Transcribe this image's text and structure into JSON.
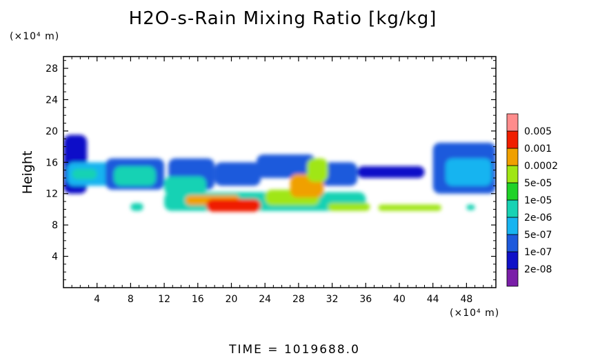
{
  "chart_data": {
    "type": "heatmap",
    "title": "H2O-s-Rain Mixing Ratio [kg/kg]",
    "ylabel": "Height",
    "x_unit": "(×10⁴ m)",
    "y_unit": "(×10⁴ m)",
    "xlim": [
      0,
      51.5
    ],
    "ylim": [
      0,
      29.5
    ],
    "x_ticks": [
      4,
      8,
      12,
      16,
      20,
      24,
      28,
      32,
      36,
      40,
      44,
      48
    ],
    "y_ticks": [
      4,
      8,
      12,
      16,
      20,
      24,
      28
    ],
    "colorbar": {
      "levels": [
        "2e-08",
        "1e-07",
        "5e-07",
        "2e-06",
        "1e-05",
        "5e-05",
        "0.0002",
        "0.001",
        "0.005"
      ],
      "colors": [
        "#7a1ea8",
        "#1010c8",
        "#1e5adc",
        "#18b4f0",
        "#18d2b4",
        "#20d228",
        "#a0e614",
        "#f0a000",
        "#f01e00",
        "#ff8c8c"
      ]
    },
    "fields": [
      {
        "x": [
          0.0,
          2.8
        ],
        "y": [
          12.0,
          19.5
        ],
        "level": 1
      },
      {
        "x": [
          0.4,
          6.0
        ],
        "y": [
          13.0,
          16.0
        ],
        "level": 3
      },
      {
        "x": [
          1.0,
          4.0
        ],
        "y": [
          13.8,
          15.2
        ],
        "level": 4
      },
      {
        "x": [
          5.0,
          12.0
        ],
        "y": [
          12.5,
          16.5
        ],
        "level": 2
      },
      {
        "x": [
          6.0,
          11.0
        ],
        "y": [
          13.0,
          15.5
        ],
        "level": 4
      },
      {
        "x": [
          12.5,
          18.0
        ],
        "y": [
          12.5,
          16.5
        ],
        "level": 2
      },
      {
        "x": [
          12.0,
          17.0
        ],
        "y": [
          11.8,
          14.2
        ],
        "level": 4
      },
      {
        "x": [
          18.0,
          23.5
        ],
        "y": [
          13.0,
          16.0
        ],
        "level": 2
      },
      {
        "x": [
          23.0,
          30.0
        ],
        "y": [
          14.0,
          17.0
        ],
        "level": 2
      },
      {
        "x": [
          29.0,
          35.0
        ],
        "y": [
          13.0,
          16.0
        ],
        "level": 2
      },
      {
        "x": [
          12.0,
          36.0
        ],
        "y": [
          9.8,
          12.2
        ],
        "level": 4
      },
      {
        "x": [
          14.5,
          21.0
        ],
        "y": [
          10.5,
          11.8
        ],
        "level": 7
      },
      {
        "x": [
          17.0,
          23.5
        ],
        "y": [
          9.7,
          11.3
        ],
        "level": 8
      },
      {
        "x": [
          24.0,
          30.5
        ],
        "y": [
          10.5,
          12.5
        ],
        "level": 6
      },
      {
        "x": [
          27.0,
          31.0
        ],
        "y": [
          11.5,
          14.5
        ],
        "level": 7
      },
      {
        "x": [
          29.0,
          31.5
        ],
        "y": [
          13.5,
          16.5
        ],
        "level": 6
      },
      {
        "x": [
          31.5,
          36.5
        ],
        "y": [
          9.8,
          10.8
        ],
        "level": 6
      },
      {
        "x": [
          37.5,
          45.0
        ],
        "y": [
          9.8,
          10.6
        ],
        "level": 6
      },
      {
        "x": [
          35.0,
          43.0
        ],
        "y": [
          14.0,
          15.5
        ],
        "level": 1
      },
      {
        "x": [
          44.0,
          51.5
        ],
        "y": [
          12.0,
          18.5
        ],
        "level": 2
      },
      {
        "x": [
          45.5,
          51.0
        ],
        "y": [
          13.0,
          16.5
        ],
        "level": 3
      },
      {
        "x": [
          8.0,
          9.5
        ],
        "y": [
          9.8,
          10.8
        ],
        "level": 4
      },
      {
        "x": [
          48.0,
          49.0
        ],
        "y": [
          9.9,
          10.6
        ],
        "level": 4
      }
    ]
  },
  "footer": {
    "time_label": "TIME = 1019688.0"
  }
}
